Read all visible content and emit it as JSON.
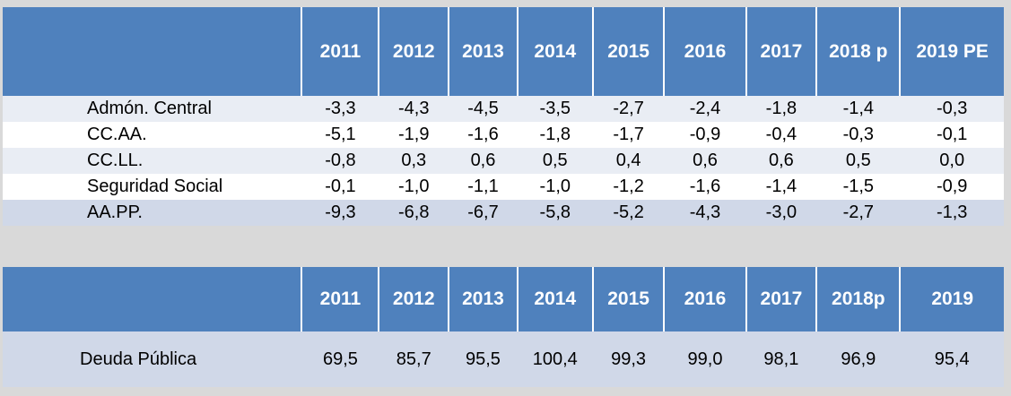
{
  "deficit_table": {
    "header": [
      "",
      "2011",
      "2012",
      "2013",
      "2014",
      "2015",
      "2016",
      "2017",
      "2018 p",
      "2019 PE"
    ],
    "rows": [
      {
        "label": "Admón. Central",
        "values": [
          "-3,3",
          "-4,3",
          "-4,5",
          "-3,5",
          "-2,7",
          "-2,4",
          "-1,8",
          "-1,4",
          "-0,3"
        ]
      },
      {
        "label": "CC.AA.",
        "values": [
          "-5,1",
          "-1,9",
          "-1,6",
          "-1,8",
          "-1,7",
          "-0,9",
          "-0,4",
          "-0,3",
          "-0,1"
        ]
      },
      {
        "label": "CC.LL.",
        "values": [
          "-0,8",
          "0,3",
          "0,6",
          "0,5",
          "0,4",
          "0,6",
          "0,6",
          "0,5",
          "0,0"
        ]
      },
      {
        "label": "Seguridad Social",
        "values": [
          "-0,1",
          "-1,0",
          "-1,1",
          "-1,0",
          "-1,2",
          "-1,6",
          "-1,4",
          "-1,5",
          "-0,9"
        ]
      },
      {
        "label": "AA.PP.",
        "values": [
          "-9,3",
          "-6,8",
          "-6,7",
          "-5,8",
          "-5,2",
          "-4,3",
          "-3,0",
          "-2,7",
          "-1,3"
        ]
      }
    ]
  },
  "debt_table": {
    "header": [
      "",
      "2011",
      "2012",
      "2013",
      "2014",
      "2015",
      "2016",
      "2017",
      "2018p",
      "2019"
    ],
    "rows": [
      {
        "label": "Deuda Pública",
        "values": [
          "69,5",
          "85,7",
          "95,5",
          "100,4",
          "99,3",
          "99,0",
          "98,1",
          "96,9",
          "95,4"
        ]
      }
    ]
  },
  "colors": {
    "header_bg": "#4f81bd",
    "row_light": "#e9edf4",
    "row_total": "#d0d8e8",
    "background": "#d9d9d9"
  }
}
